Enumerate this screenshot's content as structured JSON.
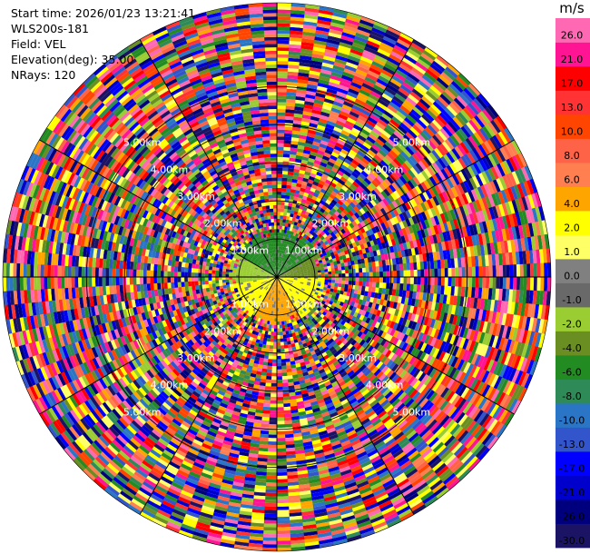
{
  "info": {
    "start_time": "Start time: 2026/01/23 13:21:41",
    "station": "WLS200s-181",
    "field": "Field: VEL",
    "elevation": "Elevation(deg): 35.00",
    "nrays": "NRays: 120"
  },
  "colorbar": {
    "unit": "m/s",
    "colors": [
      "#1b1464",
      "#00007f",
      "#0000cc",
      "#0000ff",
      "#3355cc",
      "#2a75c5",
      "#2e8b57",
      "#228b22",
      "#6b8e23",
      "#9acd32",
      "#696969",
      "#808080",
      "#ffff66",
      "#ffff00",
      "#ffa500",
      "#ff7f50",
      "#ff6347",
      "#ff4500",
      "#ff3333",
      "#ff0000",
      "#ff1493",
      "#ff69b4"
    ],
    "labels": [
      "-30.0",
      "-26.0",
      "-21.0",
      "-17.0",
      "-13.0",
      "-10.0",
      "-8.0",
      "-6.0",
      "-4.0",
      "-2.0",
      "-1.0",
      "0.0",
      "1.0",
      "2.0",
      "4.0",
      "6.0",
      "8.0",
      "10.0",
      "13.0",
      "17.0",
      "21.0",
      "26.0"
    ]
  },
  "chart_data": {
    "type": "ppi",
    "field": "VEL",
    "units": "m/s",
    "nrays": 120,
    "elevation_deg": 35.0,
    "range_rings_km": [
      1.0,
      2.0,
      3.0,
      4.0,
      5.0
    ],
    "ring_labels": [
      "1.00km",
      "2.00km",
      "3.00km",
      "4.00km",
      "5.00km"
    ],
    "max_range_km": 7.2,
    "gate_km": 0.09,
    "valid_range_km": 1.1,
    "inner_pattern": [
      {
        "az_from": 300,
        "az_to": 60,
        "color": "#228b22"
      },
      {
        "az_from": 60,
        "az_to": 90,
        "color": "#6b8e23"
      },
      {
        "az_from": 90,
        "az_to": 150,
        "color": "#ffff00"
      },
      {
        "az_from": 150,
        "az_to": 210,
        "color": "#ffa500"
      },
      {
        "az_from": 210,
        "az_to": 260,
        "color": "#ffff00"
      },
      {
        "az_from": 260,
        "az_to": 300,
        "color": "#9acd32"
      }
    ],
    "colorbar_levels": [
      -30.0,
      -26.0,
      -21.0,
      -17.0,
      -13.0,
      -10.0,
      -8.0,
      -6.0,
      -4.0,
      -2.0,
      -1.0,
      0.0,
      1.0,
      2.0,
      4.0,
      6.0,
      8.0,
      10.0,
      13.0,
      17.0,
      21.0,
      26.0
    ]
  }
}
